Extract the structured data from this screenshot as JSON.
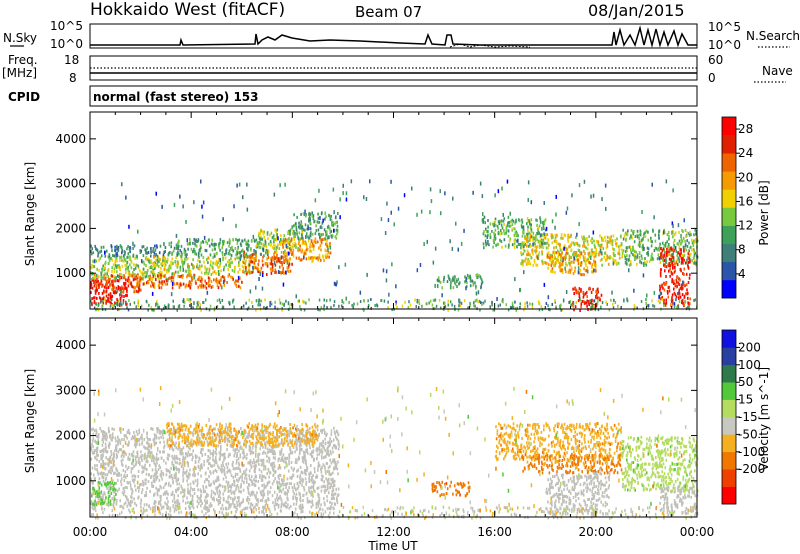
{
  "header": {
    "station": "Hokkaido West (fitACF)",
    "beam": "Beam 07",
    "date": "08/Jan/2015"
  },
  "status_panel": {
    "nsky_label": "N.Sky",
    "nsky_max": "10^5",
    "nsky_min": "10^0",
    "nsearch_label": "N.Search",
    "nsearch_max": "10^5",
    "nsearch_min": "10^0",
    "freq_label": "Freq.",
    "freq_unit": "[MHz]",
    "freq_max": "18",
    "freq_min": "8",
    "nave_label": "Nave",
    "nave_max": "60",
    "nave_min": "0",
    "cpid_label": "CPID",
    "cpid_value": "normal (fast stereo) 153"
  },
  "colors": {
    "power_scale": [
      "#0000ff",
      "#2a55a8",
      "#3f7f7a",
      "#3da15a",
      "#78c840",
      "#f0d000",
      "#f59a00",
      "#f06400",
      "#e02000",
      "#ff0000"
    ],
    "velocity_scale": [
      "#ff0000",
      "#f04000",
      "#f07800",
      "#f4b020",
      "#c8c8c0",
      "#b4dc60",
      "#52c83a",
      "#2e7a4a",
      "#2a40a0",
      "#1010e0"
    ],
    "ground_scatter": "#c0c0b8"
  },
  "chart_data": [
    {
      "type": "heatmap",
      "name": "power",
      "xlabel": "",
      "ylabel": "Slant Range [km]",
      "yticks": [
        "1000",
        "2000",
        "3000",
        "4000"
      ],
      "ylim": [
        200,
        4600
      ],
      "xlim": [
        0,
        24
      ],
      "colorbar_label": "Power [dB]",
      "colorbar_ticks": [
        "4",
        "8",
        "12",
        "16",
        "20",
        "24",
        "28"
      ],
      "colorbar_range": [
        0,
        30
      ],
      "regions": [
        {
          "t0": 0,
          "t1": 1.5,
          "r0": 300,
          "r1": 900,
          "value": 28
        },
        {
          "t0": 0,
          "t1": 2,
          "r0": 600,
          "r1": 1000,
          "value": 24
        },
        {
          "t0": 0,
          "t1": 3,
          "r0": 900,
          "r1": 1400,
          "value": 14
        },
        {
          "t0": 0,
          "t1": 3,
          "r0": 1400,
          "r1": 1650,
          "value": 8
        },
        {
          "t0": 1.5,
          "t1": 6,
          "r0": 700,
          "r1": 1000,
          "value": 22
        },
        {
          "t0": 2,
          "t1": 6.5,
          "r0": 1000,
          "r1": 1400,
          "value": 15
        },
        {
          "t0": 3,
          "t1": 7,
          "r0": 1400,
          "r1": 1800,
          "value": 10
        },
        {
          "t0": 6,
          "t1": 8,
          "r0": 1000,
          "r1": 1500,
          "value": 22
        },
        {
          "t0": 6.5,
          "t1": 8.5,
          "r0": 1500,
          "r1": 2000,
          "value": 14
        },
        {
          "t0": 7.5,
          "t1": 9.5,
          "r0": 1300,
          "r1": 1800,
          "value": 20
        },
        {
          "t0": 8,
          "t1": 9.8,
          "r0": 1800,
          "r1": 2400,
          "value": 11
        },
        {
          "t0": 13.7,
          "t1": 15.5,
          "r0": 700,
          "r1": 1000,
          "value": 10
        },
        {
          "t0": 15.5,
          "t1": 18,
          "r0": 1600,
          "r1": 2300,
          "value": 12
        },
        {
          "t0": 17,
          "t1": 21,
          "r0": 1200,
          "r1": 1900,
          "value": 16
        },
        {
          "t0": 18,
          "t1": 20,
          "r0": 1000,
          "r1": 1500,
          "value": 20
        },
        {
          "t0": 21,
          "t1": 24,
          "r0": 1200,
          "r1": 2000,
          "value": 12
        },
        {
          "t0": 19,
          "t1": 20.2,
          "r0": 200,
          "r1": 700,
          "value": 26
        },
        {
          "t0": 22.5,
          "t1": 23.7,
          "r0": 300,
          "r1": 1600,
          "value": 26
        }
      ]
    },
    {
      "type": "heatmap",
      "name": "velocity",
      "xlabel": "Time UT",
      "ylabel": "Slant Range [km]",
      "xticks": [
        "00:00",
        "04:00",
        "08:00",
        "12:00",
        "16:00",
        "20:00",
        "00:00"
      ],
      "yticks": [
        "1000",
        "2000",
        "3000",
        "4000"
      ],
      "ylim": [
        200,
        4600
      ],
      "xlim": [
        0,
        24
      ],
      "colorbar_label": "Velocity [m s^-1]",
      "colorbar_ticks": [
        "200",
        "100",
        "50",
        "15",
        "-15",
        "-50",
        "-100",
        "-200"
      ],
      "colorbar_range": [
        -250,
        250
      ],
      "regions": [
        {
          "t0": 0,
          "t1": 9.8,
          "r0": 400,
          "r1": 2200,
          "value": "gs"
        },
        {
          "t0": 0,
          "t1": 1,
          "r0": 500,
          "r1": 1000,
          "value": 60
        },
        {
          "t0": 3,
          "t1": 9,
          "r0": 1800,
          "r1": 2300,
          "value": -40
        },
        {
          "t0": 13.5,
          "t1": 15,
          "r0": 700,
          "r1": 1000,
          "value": -80
        },
        {
          "t0": 16,
          "t1": 21,
          "r0": 1500,
          "r1": 2300,
          "value": -40
        },
        {
          "t0": 17,
          "t1": 21,
          "r0": 1200,
          "r1": 1600,
          "value": -50
        },
        {
          "t0": 18,
          "t1": 20.5,
          "r0": 300,
          "r1": 1200,
          "value": "gs"
        },
        {
          "t0": 21,
          "t1": 24,
          "r0": 800,
          "r1": 2000,
          "value": 40
        },
        {
          "t0": 22.5,
          "t1": 24,
          "r0": 300,
          "r1": 900,
          "value": "gs"
        }
      ]
    }
  ]
}
